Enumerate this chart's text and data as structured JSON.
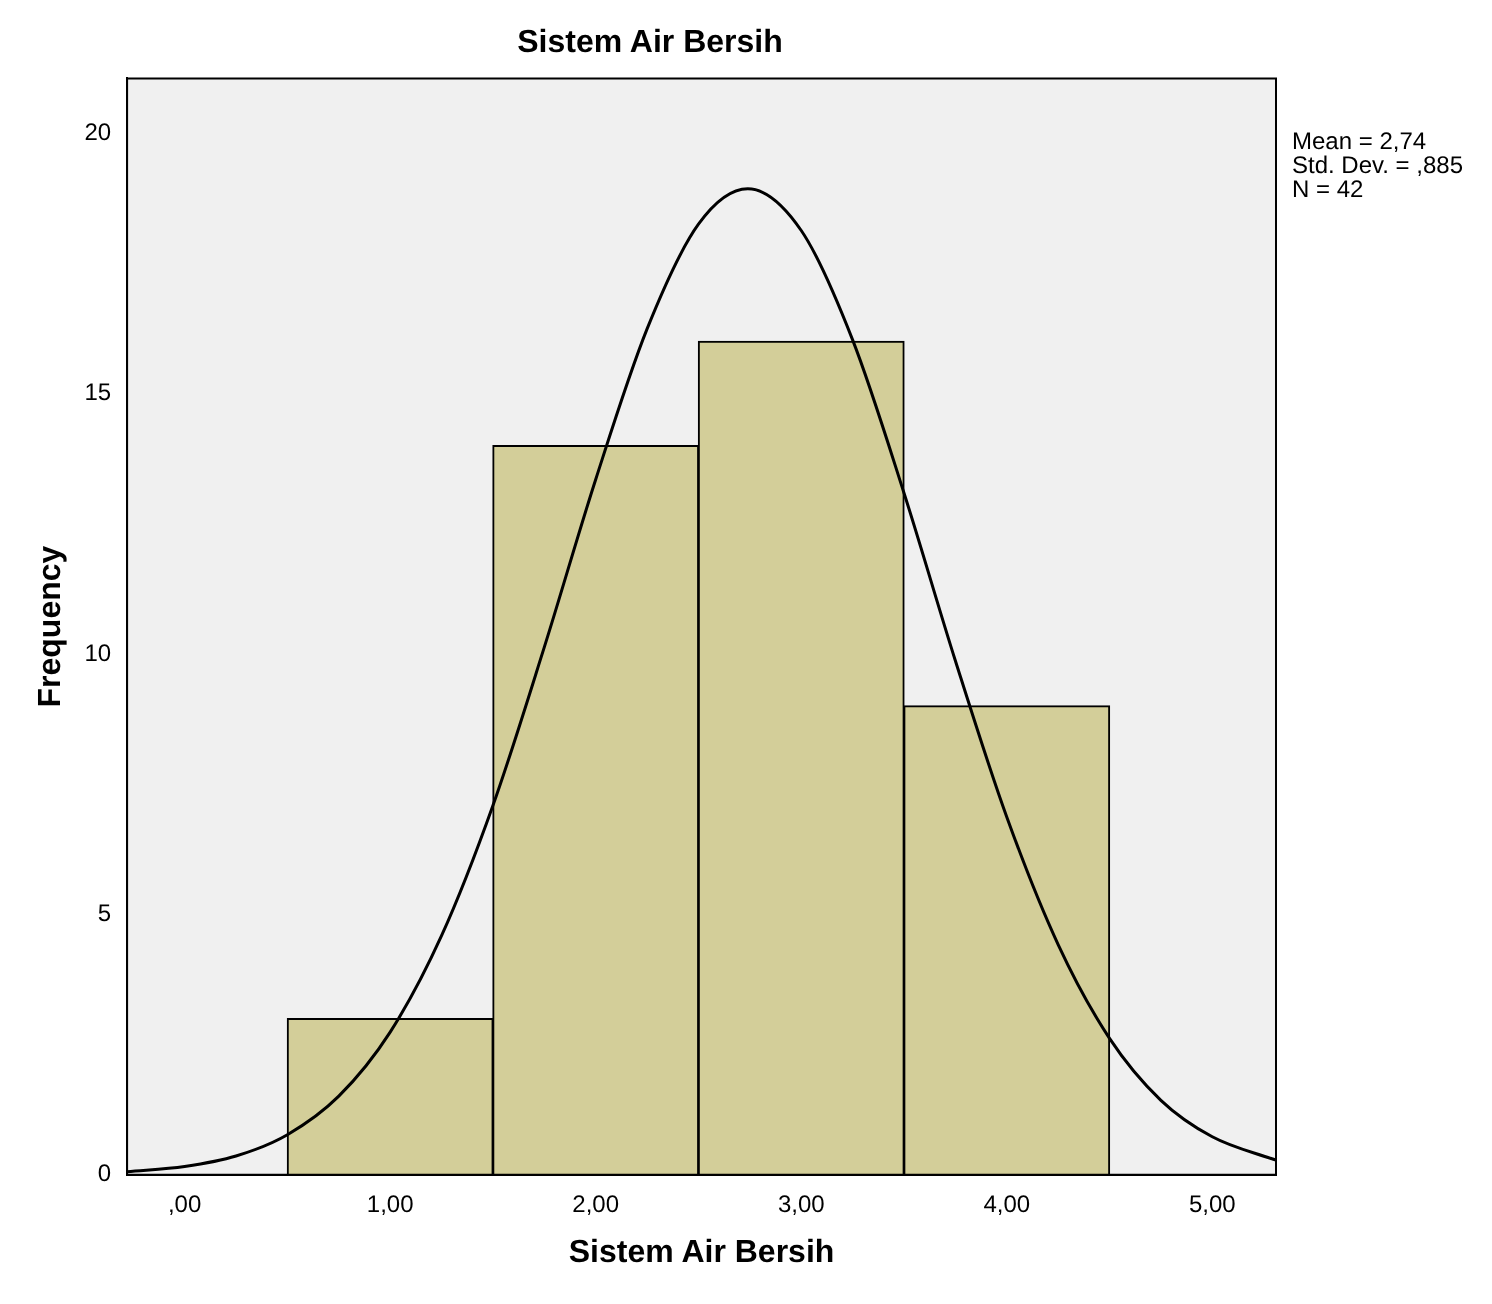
{
  "chart_data": {
    "type": "histogram",
    "title": "Sistem Air Bersih",
    "xlabel": "Sistem Air Bersih",
    "ylabel": "Frequency",
    "bins": [
      0.5,
      1.5,
      2.5,
      3.5,
      4.5
    ],
    "values": [
      3,
      14,
      16,
      9
    ],
    "color": "#d3ce99",
    "series": [
      {
        "type": "line",
        "color": "#000000",
        "x": [
          -0.28,
          0,
          0.25,
          0.5,
          0.75,
          1,
          1.25,
          1.5,
          1.75,
          2,
          2.25,
          2.5,
          2.74,
          3,
          3.25,
          3.5,
          3.75,
          4,
          4.25,
          4.5,
          4.75,
          5,
          5.31
        ],
        "values": [
          0.06,
          0.16,
          0.36,
          0.77,
          1.51,
          2.74,
          4.59,
          7.09,
          10.13,
          13.35,
          16.24,
          18.25,
          18.93,
          18.13,
          16.03,
          13.09,
          9.87,
          6.87,
          4.42,
          2.62,
          1.43,
          0.73,
          0.28
        ]
      }
    ],
    "xlim": [
      -0.28,
      5.31
    ],
    "xticks": [
      {
        "value": 0,
        "label": ",00"
      },
      {
        "value": 1,
        "label": "1,00"
      },
      {
        "value": 2,
        "label": "2,00"
      },
      {
        "value": 3,
        "label": "3,00"
      },
      {
        "value": 4,
        "label": "4,00"
      },
      {
        "value": 5,
        "label": "5,00"
      }
    ],
    "ylim": [
      0,
      21.05
    ],
    "yticks": [
      0,
      5,
      10,
      15,
      20
    ],
    "annotations": [
      "Mean = 2,74",
      "Std. Dev. = ,885",
      "N = 42"
    ]
  }
}
